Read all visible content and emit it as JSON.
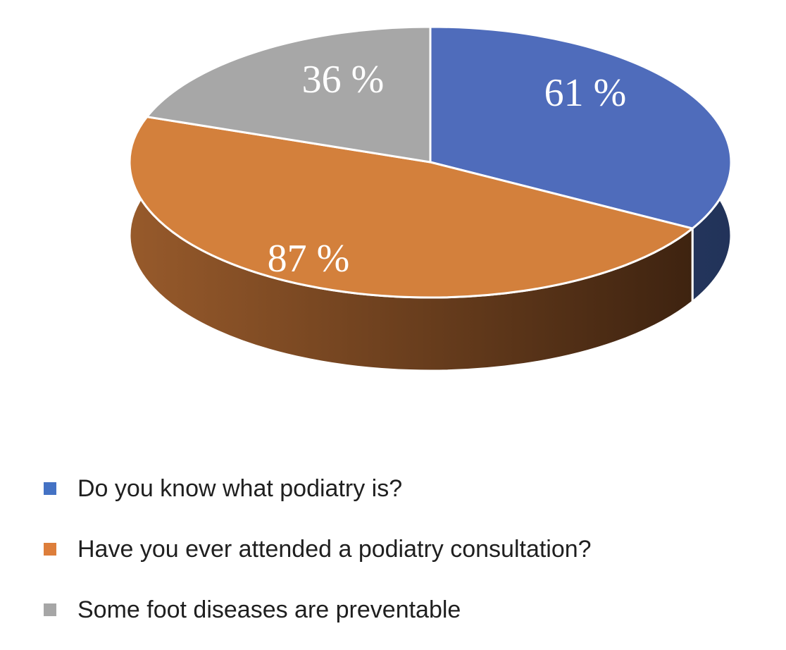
{
  "page": {
    "background_color": "#ffffff"
  },
  "chart_data": {
    "type": "pie",
    "style": "3d",
    "title": "",
    "categories": [
      "Do you know what podiatry is?",
      "Have you ever attended a podiatry consultation?",
      "Some foot diseases are preventable"
    ],
    "values": [
      61,
      87,
      36
    ],
    "value_labels": [
      "61 %",
      "87 %",
      "36 %"
    ],
    "unit": "%",
    "colors": [
      "#4F6CBB",
      "#D3803C",
      "#A7A7A7"
    ],
    "side_colors": [
      [
        "#2A3C63",
        "#22335A"
      ],
      [
        "#975A2B",
        "#3E2310"
      ],
      [
        "#7F7F7F",
        "#6E6E6E"
      ]
    ],
    "label_color": "#FFFFFF",
    "start_angle": "top",
    "direction": "clockwise",
    "grid": "off",
    "legend_position": "bottom-left"
  },
  "legend": {
    "items": [
      {
        "label": "Do you know what podiatry is?",
        "color": "#4472C4"
      },
      {
        "label": "Have you ever attended a podiatry consultation?",
        "color": "#DD7E3B"
      },
      {
        "label": "Some foot diseases are preventable",
        "color": "#A6A6A6"
      }
    ]
  }
}
